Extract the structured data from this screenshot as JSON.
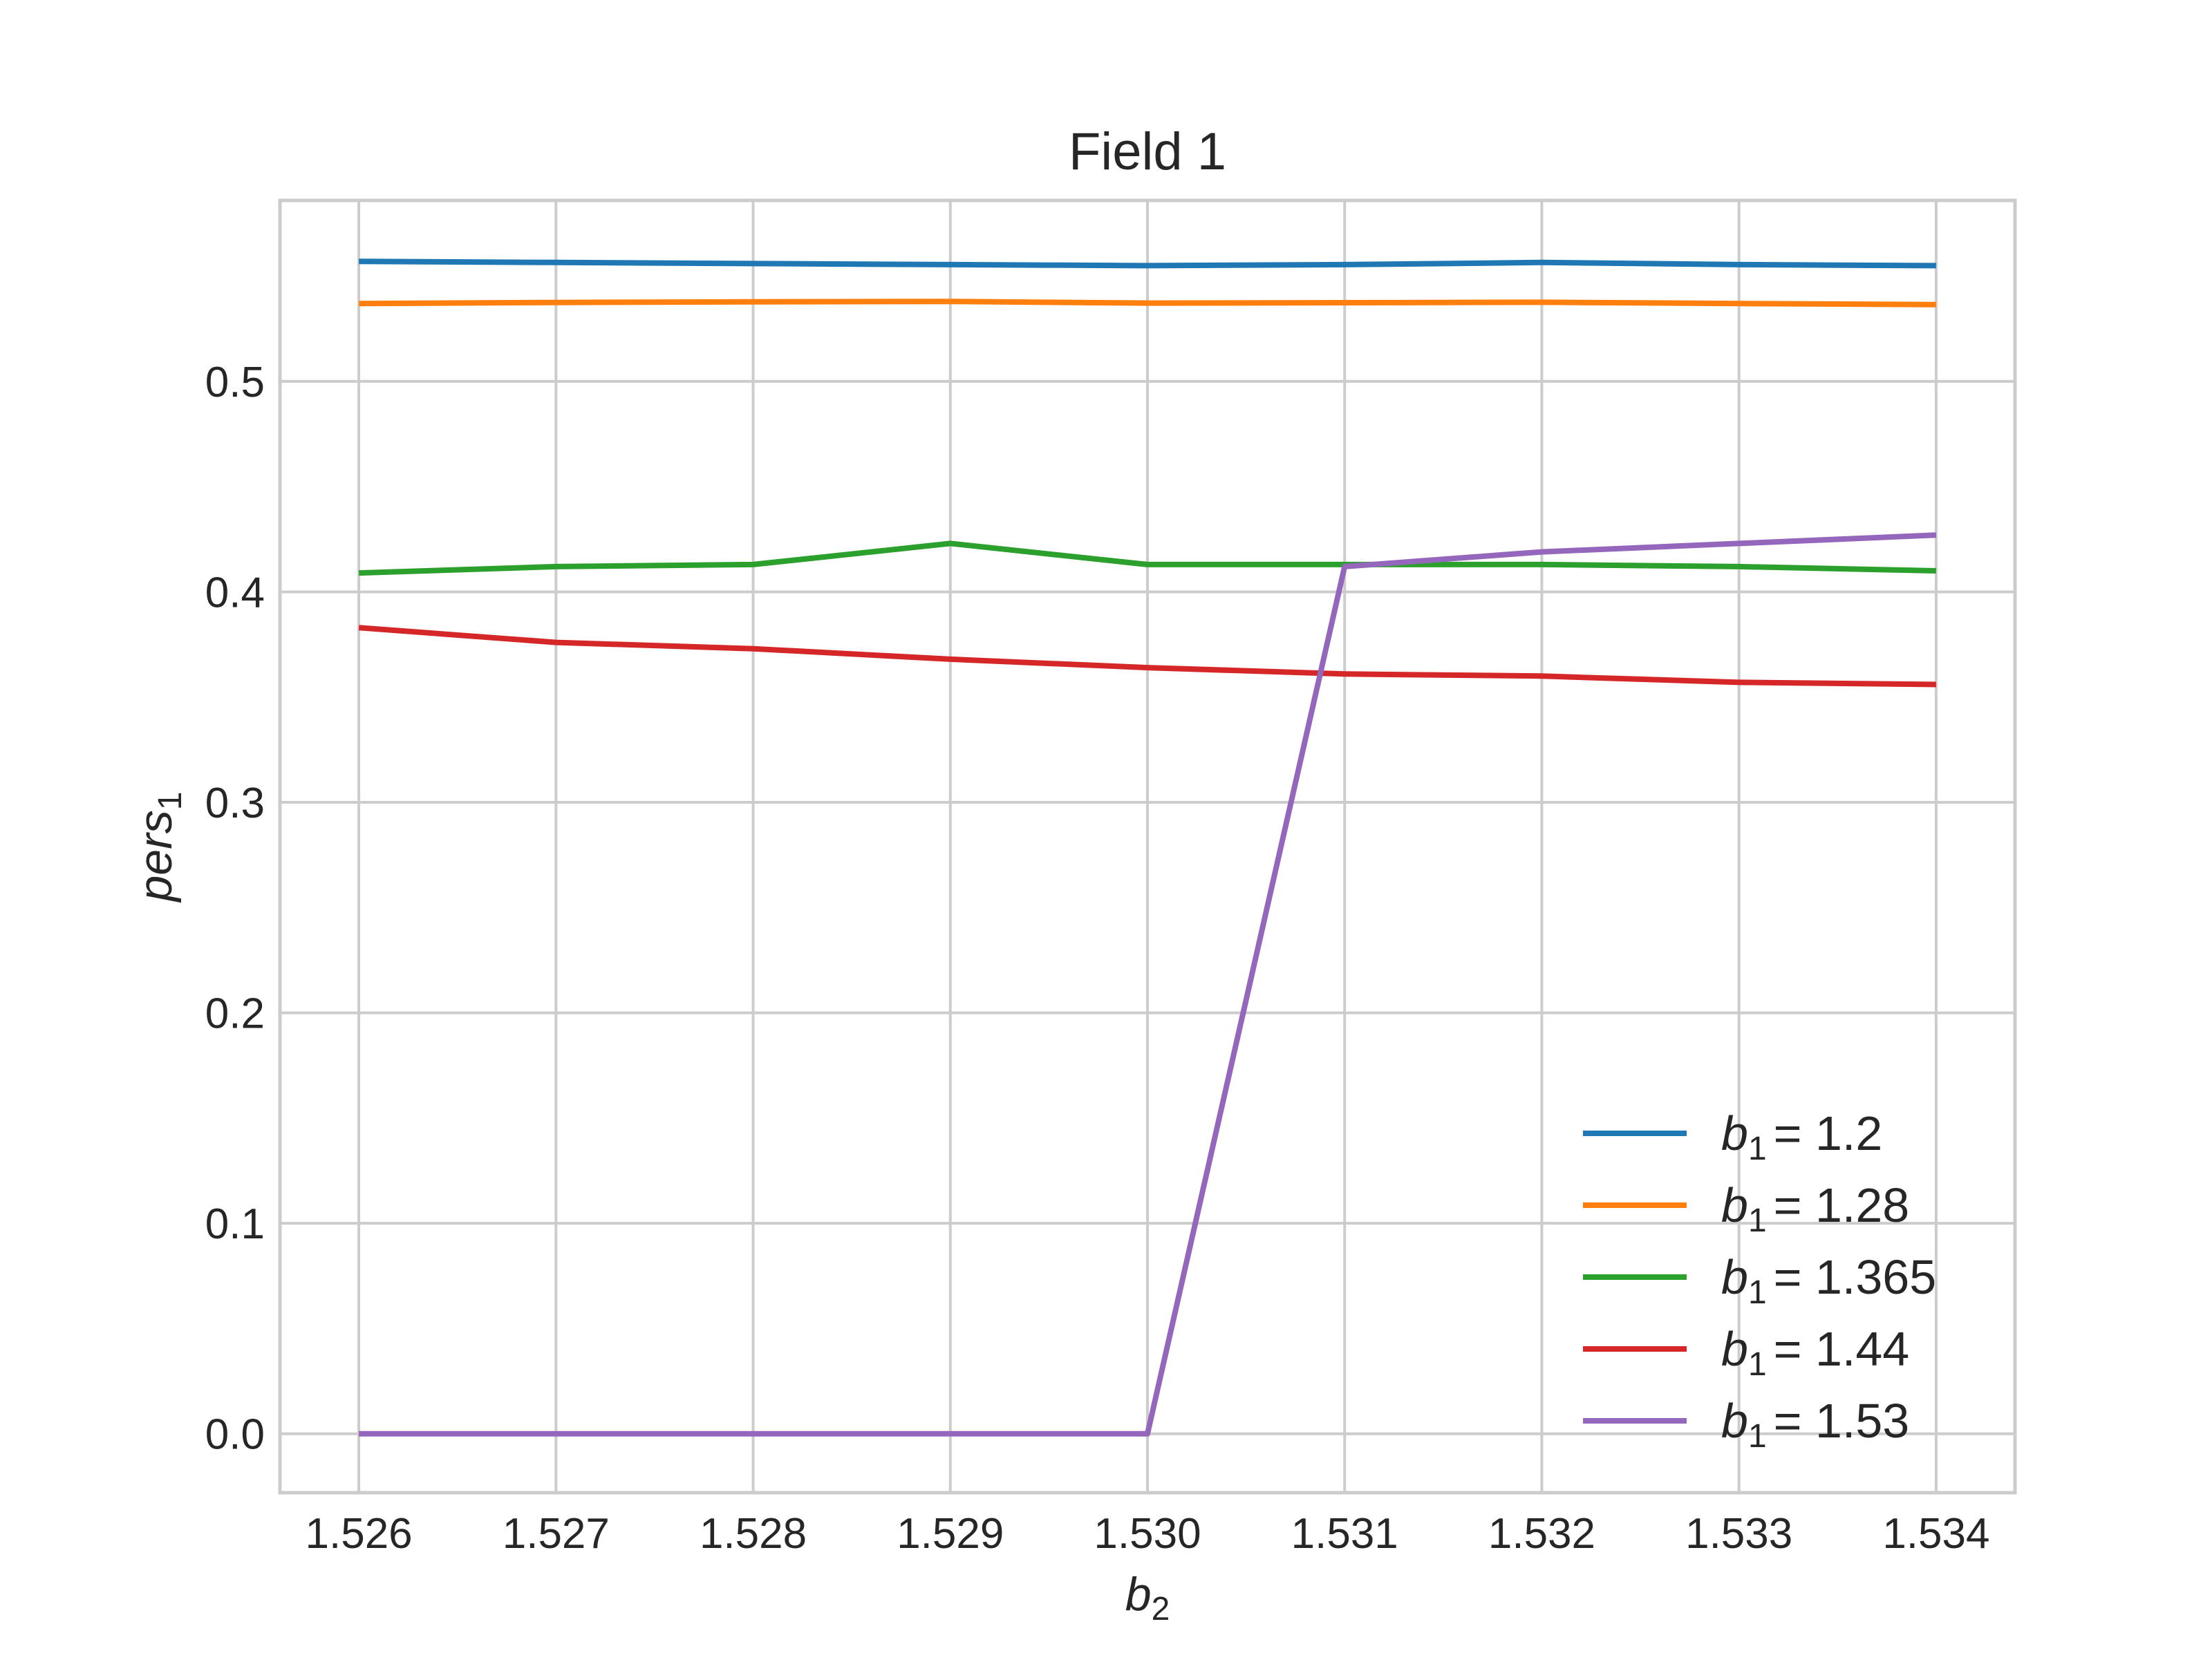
{
  "chart_data": {
    "type": "line",
    "title": "Field 1",
    "xlabel": {
      "base": "b",
      "sub": "2"
    },
    "ylabel": {
      "base": "pers",
      "sub": "1"
    },
    "x": [
      1.526,
      1.527,
      1.528,
      1.529,
      1.53,
      1.531,
      1.532,
      1.533,
      1.534
    ],
    "xticks": [
      "1.526",
      "1.527",
      "1.528",
      "1.529",
      "1.530",
      "1.531",
      "1.532",
      "1.533",
      "1.534"
    ],
    "yticks": [
      "0.0",
      "0.1",
      "0.2",
      "0.3",
      "0.4",
      "0.5"
    ],
    "xlim": [
      1.5256,
      1.5344
    ],
    "ylim": [
      -0.028,
      0.586
    ],
    "grid": true,
    "legend_position": "lower-right",
    "series": [
      {
        "label_base": "b",
        "label_sub": "1",
        "label_value": "= 1.2",
        "color": "#1f77b4",
        "values": [
          0.557,
          0.5565,
          0.556,
          0.5555,
          0.555,
          0.5555,
          0.5565,
          0.5555,
          0.555
        ]
      },
      {
        "label_base": "b",
        "label_sub": "1",
        "label_value": "= 1.28",
        "color": "#ff7f0e",
        "values": [
          0.537,
          0.5375,
          0.5378,
          0.538,
          0.5372,
          0.5374,
          0.5376,
          0.537,
          0.5365
        ]
      },
      {
        "label_base": "b",
        "label_sub": "1",
        "label_value": "= 1.365",
        "color": "#2ca02c",
        "values": [
          0.409,
          0.412,
          0.413,
          0.423,
          0.413,
          0.413,
          0.413,
          0.412,
          0.41
        ]
      },
      {
        "label_base": "b",
        "label_sub": "1",
        "label_value": "= 1.44",
        "color": "#d62728",
        "values": [
          0.383,
          0.376,
          0.373,
          0.368,
          0.364,
          0.361,
          0.36,
          0.357,
          0.356
        ]
      },
      {
        "label_base": "b",
        "label_sub": "1",
        "label_value": "= 1.53",
        "color": "#9467bd",
        "values": [
          0.0,
          0.0,
          0.0,
          0.0,
          0.0,
          0.412,
          0.419,
          0.423,
          0.427
        ]
      }
    ]
  }
}
